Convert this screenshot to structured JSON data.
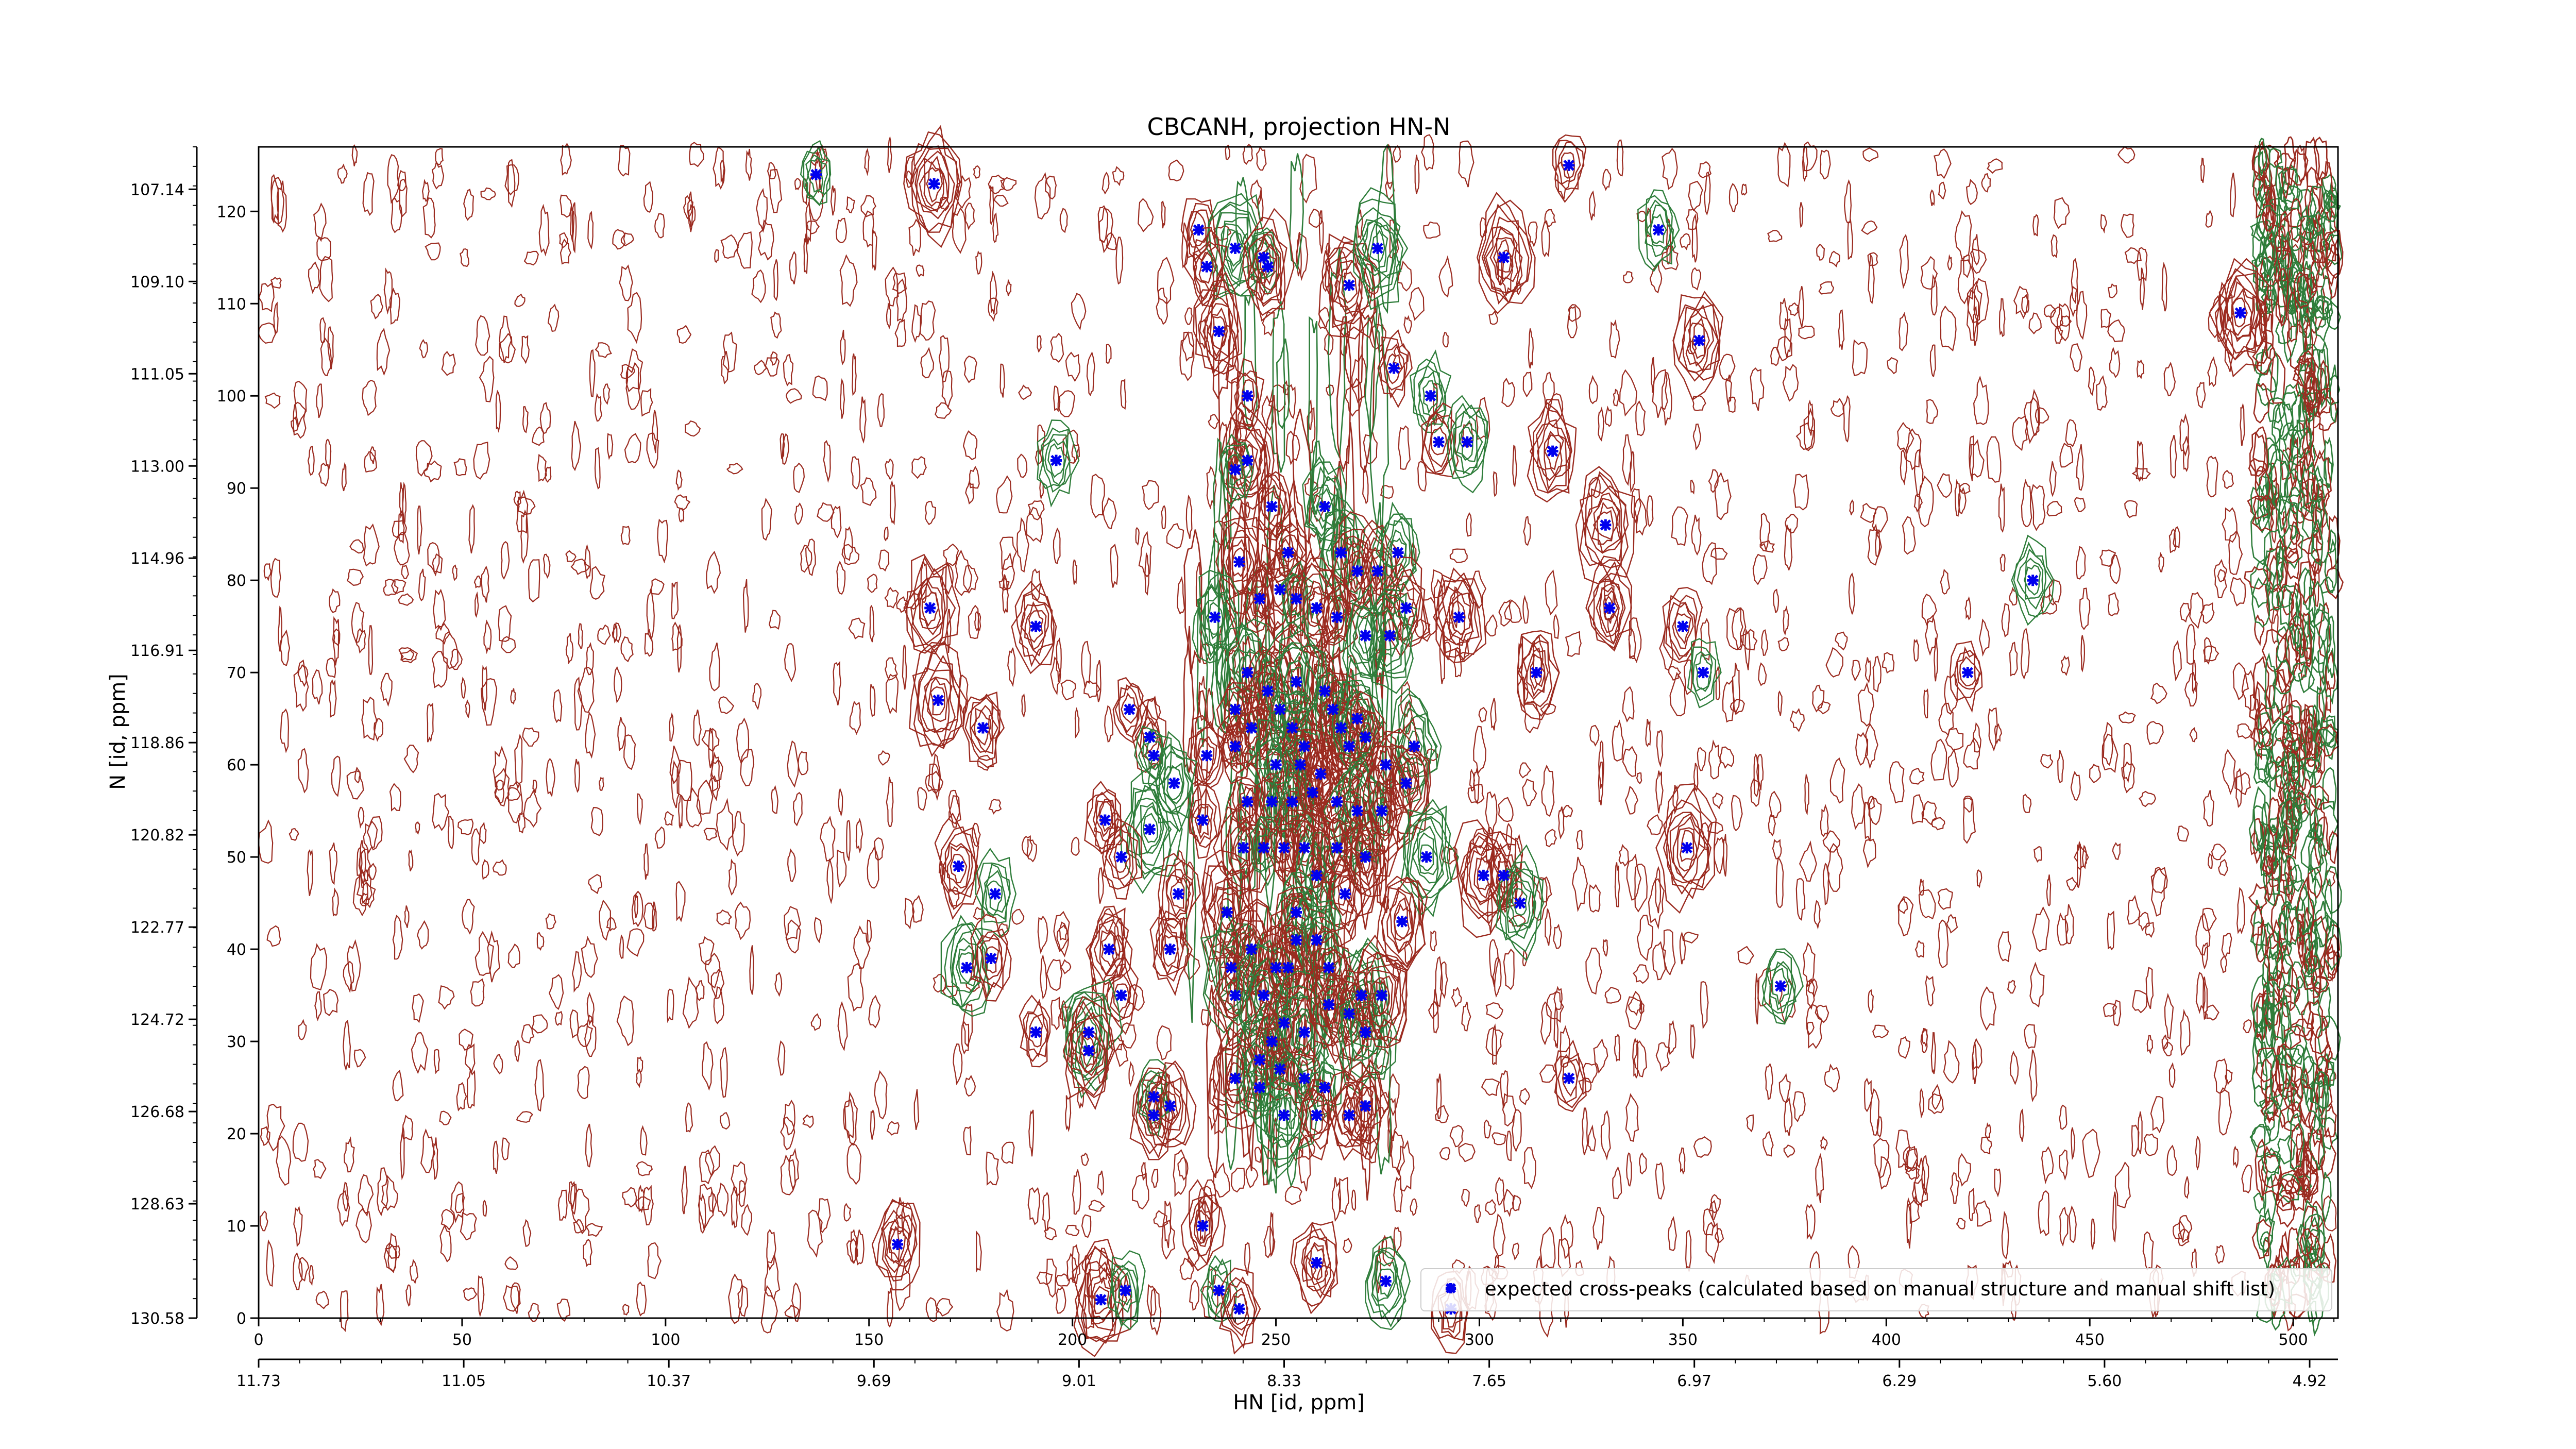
{
  "chart_data": {
    "type": "scatter",
    "title": "CBCANH, projection HN-N",
    "xlabel": "HN [id, ppm]",
    "ylabel": "N [id, ppm]",
    "xlim": [
      0,
      511
    ],
    "ylim": [
      0,
      127
    ],
    "x_index_ticks": [
      "0",
      "50",
      "100",
      "150",
      "200",
      "250",
      "300",
      "350",
      "400",
      "450",
      "500"
    ],
    "x_ppm_ticks": [
      "11.73",
      "11.05",
      "10.37",
      "9.69",
      "9.01",
      "8.33",
      "7.65",
      "6.97",
      "6.29",
      "5.60",
      "4.92"
    ],
    "y_index_ticks": [
      "0",
      "10",
      "20",
      "30",
      "40",
      "50",
      "60",
      "70",
      "80",
      "90",
      "100",
      "110",
      "120"
    ],
    "y_ppm_ticks": [
      "130.58",
      "128.63",
      "126.68",
      "124.72",
      "122.77",
      "120.82",
      "118.86",
      "116.91",
      "114.96",
      "113.00",
      "111.05",
      "109.10",
      "107.14"
    ],
    "grid": false,
    "legend": {
      "position": "bottom-right",
      "entries": [
        "expected cross-peaks (calculated based on manual structure and manual shift list)"
      ]
    },
    "colors": {
      "marker": "#0000ee",
      "positive_contour": "#9b2b20",
      "negative_contour": "#2e7d3a"
    },
    "series": [
      {
        "name": "expected cross-peaks (calculated based on manual structure and manual shift list)",
        "marker": "x",
        "points": [
          [
            137,
            124
          ],
          [
            166,
            123
          ],
          [
            231,
            118
          ],
          [
            240,
            116
          ],
          [
            233,
            114
          ],
          [
            236,
            107
          ],
          [
            247,
            115
          ],
          [
            248,
            114
          ],
          [
            268,
            112
          ],
          [
            275,
            116
          ],
          [
            306,
            115
          ],
          [
            322,
            125
          ],
          [
            344,
            118
          ],
          [
            354,
            106
          ],
          [
            279,
            103
          ],
          [
            288,
            100
          ],
          [
            243,
            100
          ],
          [
            290,
            95
          ],
          [
            297,
            95
          ],
          [
            318,
            94
          ],
          [
            243,
            93
          ],
          [
            240,
            92
          ],
          [
            331,
            86
          ],
          [
            249,
            88
          ],
          [
            262,
            88
          ],
          [
            241,
            82
          ],
          [
            253,
            83
          ],
          [
            266,
            83
          ],
          [
            270,
            81
          ],
          [
            275,
            81
          ],
          [
            280,
            83
          ],
          [
            165,
            77
          ],
          [
            191,
            75
          ],
          [
            235,
            76
          ],
          [
            246,
            78
          ],
          [
            251,
            79
          ],
          [
            255,
            78
          ],
          [
            260,
            77
          ],
          [
            265,
            76
          ],
          [
            272,
            74
          ],
          [
            282,
            77
          ],
          [
            295,
            76
          ],
          [
            278,
            74
          ],
          [
            332,
            77
          ],
          [
            350,
            75
          ],
          [
            355,
            70
          ],
          [
            314,
            70
          ],
          [
            420,
            70
          ],
          [
            436,
            80
          ],
          [
            167,
            67
          ],
          [
            178,
            64
          ],
          [
            196,
            93
          ],
          [
            214,
            66
          ],
          [
            219,
            63
          ],
          [
            243,
            70
          ],
          [
            248,
            68
          ],
          [
            251,
            66
          ],
          [
            254,
            64
          ],
          [
            257,
            62
          ],
          [
            262,
            68
          ],
          [
            264,
            66
          ],
          [
            266,
            64
          ],
          [
            268,
            62
          ],
          [
            255,
            69
          ],
          [
            240,
            66
          ],
          [
            244,
            64
          ],
          [
            250,
            60
          ],
          [
            256,
            60
          ],
          [
            261,
            59
          ],
          [
            270,
            65
          ],
          [
            272,
            63
          ],
          [
            277,
            60
          ],
          [
            284,
            62
          ],
          [
            240,
            62
          ],
          [
            233,
            61
          ],
          [
            220,
            61
          ],
          [
            243,
            56
          ],
          [
            249,
            56
          ],
          [
            254,
            56
          ],
          [
            259,
            57
          ],
          [
            265,
            56
          ],
          [
            270,
            55
          ],
          [
            276,
            55
          ],
          [
            282,
            58
          ],
          [
            225,
            58
          ],
          [
            232,
            54
          ],
          [
            208,
            54
          ],
          [
            219,
            53
          ],
          [
            212,
            50
          ],
          [
            242,
            51
          ],
          [
            247,
            51
          ],
          [
            252,
            51
          ],
          [
            257,
            51
          ],
          [
            260,
            48
          ],
          [
            265,
            51
          ],
          [
            272,
            50
          ],
          [
            287,
            50
          ],
          [
            301,
            48
          ],
          [
            306,
            48
          ],
          [
            310,
            45
          ],
          [
            351,
            51
          ],
          [
            172,
            49
          ],
          [
            181,
            46
          ],
          [
            226,
            46
          ],
          [
            238,
            44
          ],
          [
            255,
            44
          ],
          [
            267,
            46
          ],
          [
            281,
            43
          ],
          [
            239,
            38
          ],
          [
            250,
            38
          ],
          [
            255,
            41
          ],
          [
            260,
            41
          ],
          [
            244,
            40
          ],
          [
            240,
            35
          ],
          [
            247,
            35
          ],
          [
            253,
            38
          ],
          [
            263,
            38
          ],
          [
            271,
            35
          ],
          [
            224,
            40
          ],
          [
            209,
            40
          ],
          [
            174,
            38
          ],
          [
            180,
            39
          ],
          [
            212,
            35
          ],
          [
            246,
            28
          ],
          [
            249,
            30
          ],
          [
            252,
            32
          ],
          [
            257,
            31
          ],
          [
            263,
            34
          ],
          [
            268,
            33
          ],
          [
            272,
            31
          ],
          [
            276,
            35
          ],
          [
            191,
            31
          ],
          [
            204,
            31
          ],
          [
            204,
            29
          ],
          [
            220,
            22
          ],
          [
            220,
            24
          ],
          [
            224,
            23
          ],
          [
            240,
            26
          ],
          [
            246,
            25
          ],
          [
            251,
            27
          ],
          [
            257,
            26
          ],
          [
            262,
            25
          ],
          [
            268,
            22
          ],
          [
            272,
            23
          ],
          [
            252,
            22
          ],
          [
            260,
            22
          ],
          [
            322,
            26
          ],
          [
            374,
            36
          ],
          [
            157,
            8
          ],
          [
            232,
            10
          ],
          [
            236,
            3
          ],
          [
            241,
            1
          ],
          [
            260,
            6
          ],
          [
            277,
            4
          ],
          [
            293,
            1
          ],
          [
            207,
            2
          ],
          [
            213,
            3
          ],
          [
            487,
            109
          ]
        ]
      }
    ]
  }
}
